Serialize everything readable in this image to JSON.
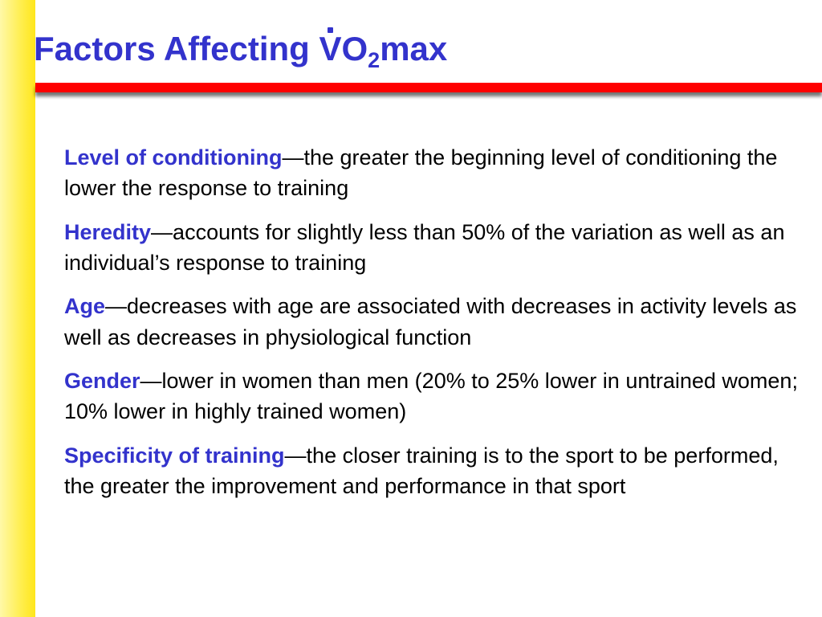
{
  "slide": {
    "title": {
      "prefix": "Factors Affecting ",
      "v": "V",
      "o": "O",
      "sub": "2",
      "suffix": "max"
    },
    "factors": [
      {
        "term": "Level of conditioning",
        "description": "—the greater the beginning level of conditioning the lower the response to training"
      },
      {
        "term": "Heredity",
        "description": "—accounts for slightly less than 50% of the variation as well as an individual’s response to training"
      },
      {
        "term": "Age",
        "description": "—decreases with age are associated with decreases in activity levels as well as decreases in physiological function"
      },
      {
        "term": "Gender",
        "description": "—lower in women than men (20% to 25% lower in untrained women; 10% lower in highly trained women)"
      },
      {
        "term": "Specificity of training",
        "description": "—the closer training is to the sport to be performed, the greater the improvement and performance in that sport"
      }
    ]
  },
  "colors": {
    "title": "#3333cc",
    "term": "#3333cc",
    "body_text": "#000000",
    "rule": "#ff0000",
    "side_bar": "#ffef55"
  }
}
